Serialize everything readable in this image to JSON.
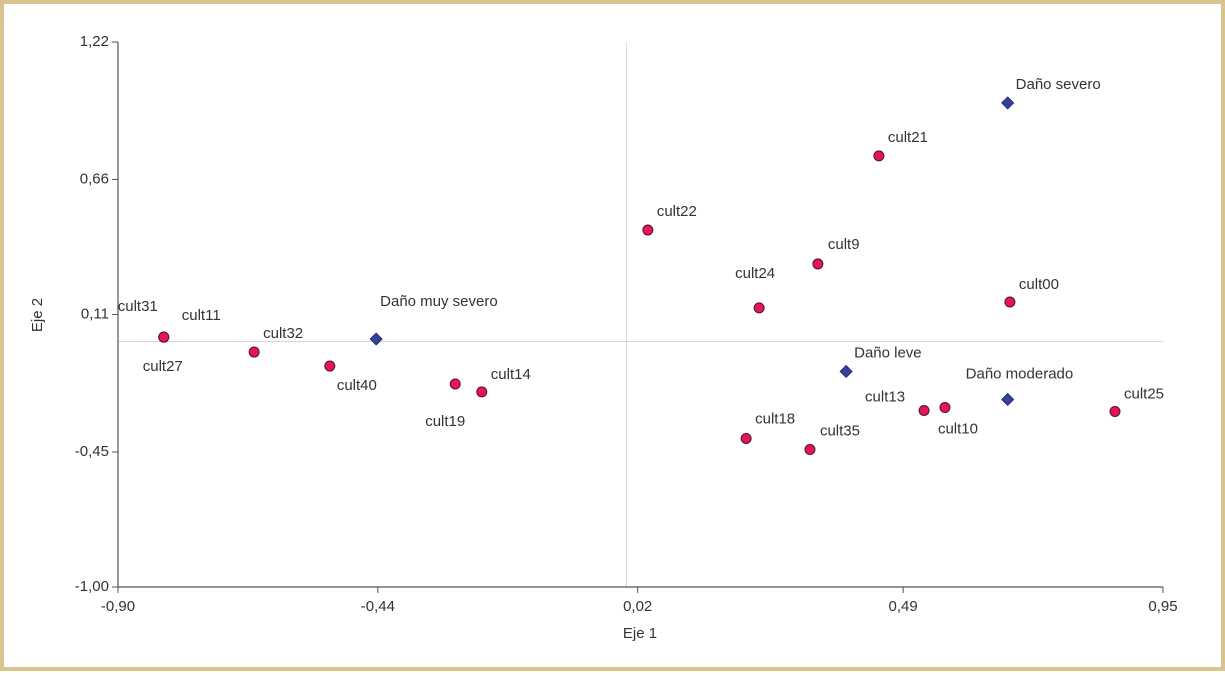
{
  "chart_data": {
    "type": "scatter",
    "x_label": "Eje 1",
    "y_label": "Eje 2",
    "xlim": [
      -0.9,
      0.95
    ],
    "ylim": [
      -1.0,
      1.22
    ],
    "xticks": [
      {
        "value": -0.9,
        "label": "-0,90"
      },
      {
        "value": -0.44,
        "label": "-0,44"
      },
      {
        "value": 0.02,
        "label": "0,02"
      },
      {
        "value": 0.49,
        "label": "0,49"
      },
      {
        "value": 0.95,
        "label": "0,95"
      }
    ],
    "yticks": [
      {
        "value": -1.0,
        "label": "-1,00"
      },
      {
        "value": -0.45,
        "label": "-0,45"
      },
      {
        "value": 0.11,
        "label": "0,11"
      },
      {
        "value": 0.66,
        "label": "0,66"
      },
      {
        "value": 1.22,
        "label": "1,22"
      }
    ],
    "reference_lines": {
      "x": 0,
      "y": 0
    },
    "series": [
      {
        "color": "#e3165b",
        "marker": "circle",
        "labels": [
          "cult31",
          "cult11",
          "cult27",
          "cult32",
          "cult40",
          "cult19",
          "cult14",
          "cult22",
          "cult24",
          "cult9",
          "cult21",
          "cult00",
          "cult13",
          "cult10",
          "cult25",
          "cult18",
          "cult35"
        ],
        "x": [
          -0.819,
          -0.819,
          -0.819,
          -0.659,
          -0.525,
          -0.303,
          -0.256,
          0.038,
          0.235,
          0.339,
          0.447,
          0.679,
          0.527,
          0.564,
          0.865,
          0.212,
          0.325
        ],
        "y": [
          0.018,
          0.018,
          0.018,
          -0.043,
          -0.1,
          -0.173,
          -0.205,
          0.454,
          0.137,
          0.316,
          0.756,
          0.161,
          -0.281,
          -0.269,
          -0.285,
          -0.395,
          -0.44
        ]
      },
      {
        "color": "#34409a",
        "marker": "diamond",
        "labels": [
          "Daño muy severo",
          "Daño severo",
          "Daño leve",
          "Daño moderado"
        ],
        "x": [
          -0.443,
          0.675,
          0.389,
          0.675
        ],
        "y": [
          0.01,
          0.972,
          -0.122,
          -0.236
        ]
      }
    ]
  }
}
